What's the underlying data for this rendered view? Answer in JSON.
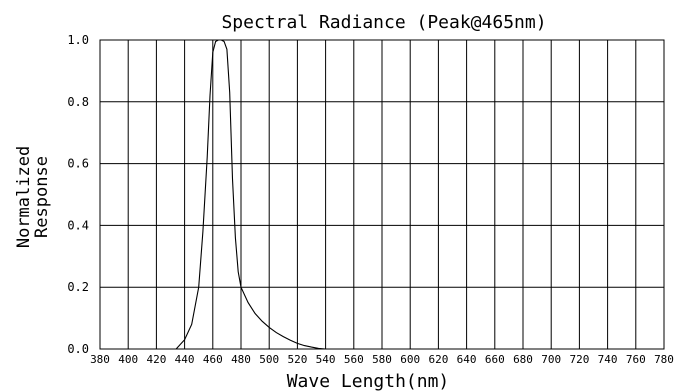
{
  "chart_data": {
    "type": "line",
    "title": "Spectral Radiance  (Peak@465nm)",
    "xlabel": "Wave Length(nm)",
    "ylabel_lines": [
      "Normalized",
      "Response"
    ],
    "xlim": [
      380,
      780
    ],
    "ylim": [
      0,
      1.0
    ],
    "x_ticks": [
      380,
      400,
      420,
      440,
      460,
      480,
      500,
      520,
      540,
      560,
      580,
      600,
      620,
      640,
      660,
      680,
      700,
      720,
      740,
      760,
      780
    ],
    "y_ticks": [
      0.0,
      0.2,
      0.4,
      0.6,
      0.8,
      1.0
    ],
    "y_tick_labels": [
      "0.0",
      "0.2",
      "0.4",
      "0.6",
      "0.8",
      "1.0"
    ],
    "grid": true,
    "series": [
      {
        "x": [
          434,
          440,
          445,
          450,
          453,
          456,
          458,
          460,
          462,
          464,
          466,
          468,
          470,
          472,
          474,
          476,
          478,
          480,
          485,
          490,
          495,
          500,
          505,
          510,
          515,
          520,
          525,
          530,
          535,
          540
        ],
        "y": [
          0.0,
          0.03,
          0.08,
          0.2,
          0.38,
          0.62,
          0.82,
          0.96,
          0.995,
          1.0,
          1.0,
          0.995,
          0.97,
          0.83,
          0.55,
          0.36,
          0.25,
          0.2,
          0.15,
          0.115,
          0.09,
          0.07,
          0.053,
          0.04,
          0.028,
          0.018,
          0.011,
          0.006,
          0.002,
          0.0
        ]
      }
    ]
  }
}
